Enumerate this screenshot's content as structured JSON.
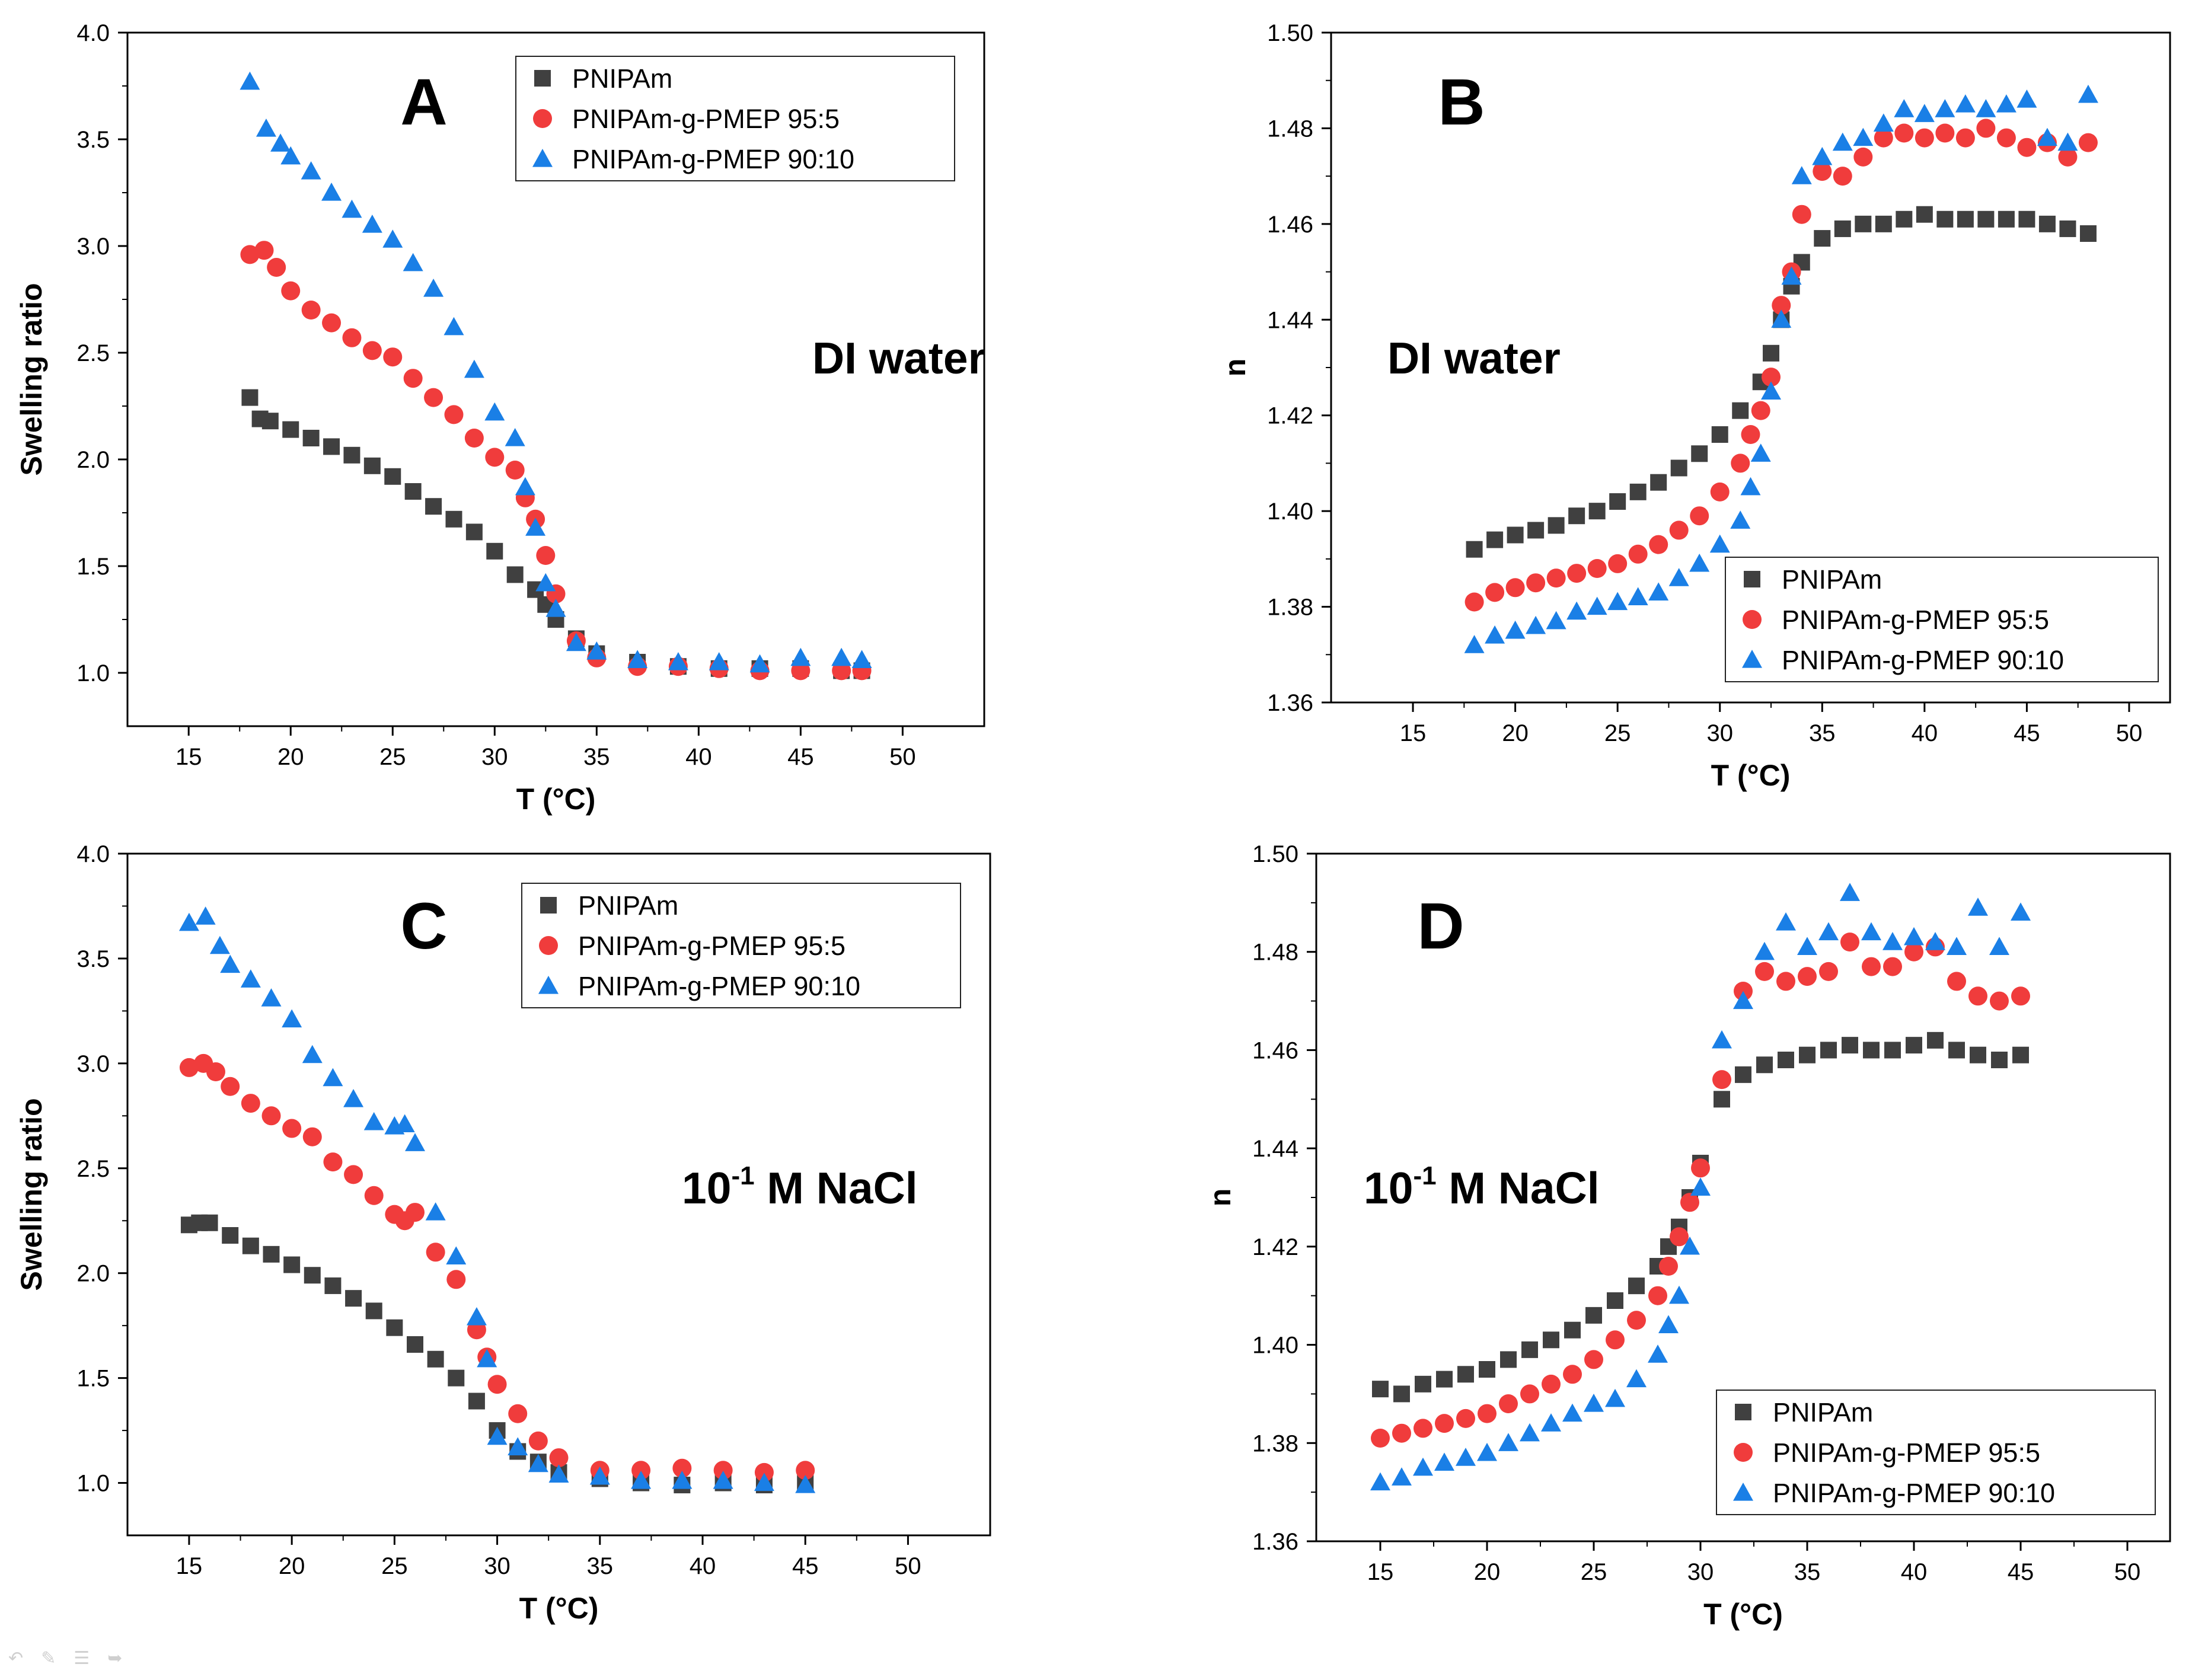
{
  "colors": {
    "PNIPAm": "#404040",
    "PNIPAm-g-PMEP 95:5": "#f03c3c",
    "PNIPAm-g-PMEP 90:10": "#1a7fe6"
  },
  "nav_icons": [
    "back-arrow-icon",
    "pen-icon",
    "menu-icon",
    "forward-arrow-icon"
  ],
  "chart_data": [
    {
      "panel": "A",
      "type": "scatter",
      "annotation": "DI water",
      "xlabel": "T (°C)",
      "ylabel": "Swelling ratio",
      "xlim": [
        12,
        54
      ],
      "ylim": [
        0.75,
        4.0
      ],
      "xticks": [
        15,
        20,
        25,
        30,
        35,
        40,
        45,
        50
      ],
      "yticks": [
        "1.0",
        "1.5",
        "2.0",
        "2.5",
        "3.0",
        "3.5",
        "4.0"
      ],
      "legend_position": "top-right",
      "series": [
        {
          "name": "PNIPAm",
          "marker": "square",
          "x": [
            18,
            18.5,
            19,
            20,
            21,
            22,
            23,
            24,
            25,
            26,
            27,
            28,
            29,
            30,
            31,
            32,
            32.5,
            33,
            34,
            35,
            37,
            39,
            41,
            43,
            45,
            47,
            48
          ],
          "y": [
            2.29,
            2.19,
            2.18,
            2.14,
            2.1,
            2.06,
            2.02,
            1.97,
            1.92,
            1.85,
            1.78,
            1.72,
            1.66,
            1.57,
            1.46,
            1.39,
            1.32,
            1.25,
            1.16,
            1.09,
            1.05,
            1.03,
            1.02,
            1.02,
            1.02,
            1.01,
            1.01
          ]
        },
        {
          "name": "PNIPAm-g-PMEP 95:5",
          "marker": "circle",
          "x": [
            18,
            18.7,
            19.3,
            20,
            21,
            22,
            23,
            24,
            25,
            26,
            27,
            28,
            29,
            30,
            31,
            31.5,
            32,
            32.5,
            33,
            34,
            35,
            37,
            39,
            41,
            43,
            45,
            47,
            48
          ],
          "y": [
            2.96,
            2.98,
            2.9,
            2.79,
            2.7,
            2.64,
            2.57,
            2.51,
            2.48,
            2.38,
            2.29,
            2.21,
            2.1,
            2.01,
            1.95,
            1.82,
            1.72,
            1.55,
            1.37,
            1.15,
            1.07,
            1.03,
            1.03,
            1.02,
            1.01,
            1.01,
            1.01,
            1.01
          ]
        },
        {
          "name": "PNIPAm-g-PMEP 90:10",
          "marker": "triangle",
          "x": [
            18,
            18.8,
            19.5,
            20,
            21,
            22,
            23,
            24,
            25,
            26,
            27,
            28,
            29,
            30,
            31,
            31.5,
            32,
            32.5,
            33,
            34,
            35,
            37,
            39,
            41,
            43,
            45,
            47,
            48
          ],
          "y": [
            3.77,
            3.55,
            3.48,
            3.42,
            3.35,
            3.25,
            3.17,
            3.1,
            3.03,
            2.92,
            2.8,
            2.62,
            2.42,
            2.22,
            2.1,
            1.87,
            1.68,
            1.42,
            1.3,
            1.14,
            1.1,
            1.06,
            1.05,
            1.05,
            1.04,
            1.07,
            1.07,
            1.06
          ]
        }
      ]
    },
    {
      "panel": "B",
      "type": "scatter",
      "annotation": "DI water",
      "xlabel": "T (°C)",
      "ylabel": "n",
      "xlim": [
        11,
        52
      ],
      "ylim": [
        1.36,
        1.5
      ],
      "xticks": [
        15,
        20,
        25,
        30,
        35,
        40,
        45,
        50
      ],
      "yticks": [
        "1.36",
        "1.38",
        "1.40",
        "1.42",
        "1.44",
        "1.46",
        "1.48",
        "1.50"
      ],
      "legend_position": "bottom-right",
      "series": [
        {
          "name": "PNIPAm",
          "marker": "square",
          "x": [
            18,
            19,
            20,
            21,
            22,
            23,
            24,
            25,
            26,
            27,
            28,
            29,
            30,
            31,
            32,
            32.5,
            33,
            33.5,
            34,
            35,
            36,
            37,
            38,
            39,
            40,
            41,
            42,
            43,
            44,
            45,
            46,
            47,
            48
          ],
          "y": [
            1.392,
            1.394,
            1.395,
            1.396,
            1.397,
            1.399,
            1.4,
            1.402,
            1.404,
            1.406,
            1.409,
            1.412,
            1.416,
            1.421,
            1.427,
            1.433,
            1.44,
            1.447,
            1.452,
            1.457,
            1.459,
            1.46,
            1.46,
            1.461,
            1.462,
            1.461,
            1.461,
            1.461,
            1.461,
            1.461,
            1.46,
            1.459,
            1.458
          ]
        },
        {
          "name": "PNIPAm-g-PMEP 95:5",
          "marker": "circle",
          "x": [
            18,
            19,
            20,
            21,
            22,
            23,
            24,
            25,
            26,
            27,
            28,
            29,
            30,
            31,
            31.5,
            32,
            32.5,
            33,
            33.5,
            34,
            35,
            36,
            37,
            38,
            39,
            40,
            41,
            42,
            43,
            44,
            45,
            46,
            47,
            48
          ],
          "y": [
            1.381,
            1.383,
            1.384,
            1.385,
            1.386,
            1.387,
            1.388,
            1.389,
            1.391,
            1.393,
            1.396,
            1.399,
            1.404,
            1.41,
            1.416,
            1.421,
            1.428,
            1.443,
            1.45,
            1.462,
            1.471,
            1.47,
            1.474,
            1.478,
            1.479,
            1.478,
            1.479,
            1.478,
            1.48,
            1.478,
            1.476,
            1.477,
            1.474,
            1.477
          ]
        },
        {
          "name": "PNIPAm-g-PMEP 90:10",
          "marker": "triangle",
          "x": [
            18,
            19,
            20,
            21,
            22,
            23,
            24,
            25,
            26,
            27,
            28,
            29,
            30,
            31,
            31.5,
            32,
            32.5,
            33,
            33.5,
            34,
            35,
            36,
            37,
            38,
            39,
            40,
            41,
            42,
            43,
            44,
            45,
            46,
            47,
            48
          ],
          "y": [
            1.372,
            1.374,
            1.375,
            1.376,
            1.377,
            1.379,
            1.38,
            1.381,
            1.382,
            1.383,
            1.386,
            1.389,
            1.393,
            1.398,
            1.405,
            1.412,
            1.425,
            1.44,
            1.449,
            1.47,
            1.474,
            1.477,
            1.478,
            1.481,
            1.484,
            1.483,
            1.484,
            1.485,
            1.484,
            1.485,
            1.486,
            1.478,
            1.477,
            1.487
          ]
        }
      ]
    },
    {
      "panel": "C",
      "type": "scatter",
      "annotation_base": "10",
      "annotation_sup": "-1",
      "annotation_rest": " M NaCl",
      "xlabel": "T (°C)",
      "ylabel": "Swelling ratio",
      "xlim": [
        12,
        54
      ],
      "ylim": [
        0.75,
        4.0
      ],
      "xticks": [
        15,
        20,
        25,
        30,
        35,
        40,
        45,
        50
      ],
      "yticks": [
        "1.0",
        "1.5",
        "2.0",
        "2.5",
        "3.0",
        "3.5",
        "4.0"
      ],
      "legend_position": "top-right",
      "series": [
        {
          "name": "PNIPAm",
          "marker": "square",
          "x": [
            15,
            15.5,
            16,
            17,
            18,
            19,
            20,
            21,
            22,
            23,
            24,
            25,
            26,
            27,
            28,
            29,
            30,
            31,
            32,
            33,
            35,
            37,
            39,
            41,
            43,
            45
          ],
          "y": [
            2.23,
            2.24,
            2.24,
            2.18,
            2.13,
            2.09,
            2.04,
            1.99,
            1.94,
            1.88,
            1.82,
            1.74,
            1.66,
            1.59,
            1.5,
            1.39,
            1.25,
            1.15,
            1.1,
            1.05,
            1.02,
            1.0,
            0.99,
            1.0,
            0.99,
            1.0
          ]
        },
        {
          "name": "PNIPAm-g-PMEP 95:5",
          "marker": "circle",
          "x": [
            15,
            15.7,
            16.3,
            17,
            18,
            19,
            20,
            21,
            22,
            23,
            24,
            25,
            25.5,
            26,
            27,
            28,
            29,
            29.5,
            30,
            31,
            32,
            33,
            35,
            37,
            39,
            41,
            43,
            45
          ],
          "y": [
            2.98,
            3.0,
            2.96,
            2.89,
            2.81,
            2.75,
            2.69,
            2.65,
            2.53,
            2.47,
            2.37,
            2.28,
            2.25,
            2.29,
            2.1,
            1.97,
            1.73,
            1.6,
            1.47,
            1.33,
            1.2,
            1.12,
            1.06,
            1.06,
            1.07,
            1.06,
            1.05,
            1.06
          ]
        },
        {
          "name": "PNIPAm-g-PMEP 90:10",
          "marker": "triangle",
          "x": [
            15,
            15.8,
            16.5,
            17,
            18,
            19,
            20,
            21,
            22,
            23,
            24,
            25,
            25.5,
            26,
            27,
            28,
            29,
            29.5,
            30,
            31,
            32,
            33,
            35,
            37,
            39,
            41,
            43,
            45
          ],
          "y": [
            3.67,
            3.7,
            3.56,
            3.47,
            3.4,
            3.31,
            3.21,
            3.04,
            2.93,
            2.83,
            2.72,
            2.7,
            2.71,
            2.62,
            2.29,
            2.08,
            1.79,
            1.59,
            1.22,
            1.17,
            1.09,
            1.04,
            1.03,
            1.01,
            1.01,
            1.01,
            1.0,
            0.99
          ]
        }
      ]
    },
    {
      "panel": "D",
      "type": "scatter",
      "annotation_base": "10",
      "annotation_sup": "-1",
      "annotation_rest": " M NaCl",
      "xlabel": "T (°C)",
      "ylabel": "n",
      "xlim": [
        12,
        52
      ],
      "ylim": [
        1.36,
        1.5
      ],
      "xticks": [
        15,
        20,
        25,
        30,
        35,
        40,
        45,
        50
      ],
      "yticks": [
        "1.36",
        "1.38",
        "1.40",
        "1.42",
        "1.44",
        "1.46",
        "1.48",
        "1.50"
      ],
      "legend_position": "bottom-right",
      "series": [
        {
          "name": "PNIPAm",
          "marker": "square",
          "x": [
            15,
            16,
            17,
            18,
            19,
            20,
            21,
            22,
            23,
            24,
            25,
            26,
            27,
            28,
            28.5,
            29,
            29.5,
            30,
            31,
            32,
            33,
            34,
            35,
            36,
            37,
            38,
            39,
            40,
            41,
            42,
            43,
            44,
            45
          ],
          "y": [
            1.391,
            1.39,
            1.392,
            1.393,
            1.394,
            1.395,
            1.397,
            1.399,
            1.401,
            1.403,
            1.406,
            1.409,
            1.412,
            1.416,
            1.42,
            1.424,
            1.43,
            1.437,
            1.45,
            1.455,
            1.457,
            1.458,
            1.459,
            1.46,
            1.461,
            1.46,
            1.46,
            1.461,
            1.462,
            1.46,
            1.459,
            1.458,
            1.459
          ]
        },
        {
          "name": "PNIPAm-g-PMEP 95:5",
          "marker": "circle",
          "x": [
            15,
            16,
            17,
            18,
            19,
            20,
            21,
            22,
            23,
            24,
            25,
            26,
            27,
            28,
            28.5,
            29,
            29.5,
            30,
            31,
            32,
            33,
            34,
            35,
            36,
            37,
            38,
            39,
            40,
            41,
            42,
            43,
            44,
            45
          ],
          "y": [
            1.381,
            1.382,
            1.383,
            1.384,
            1.385,
            1.386,
            1.388,
            1.39,
            1.392,
            1.394,
            1.397,
            1.401,
            1.405,
            1.41,
            1.416,
            1.422,
            1.429,
            1.436,
            1.454,
            1.472,
            1.476,
            1.474,
            1.475,
            1.476,
            1.482,
            1.477,
            1.477,
            1.48,
            1.481,
            1.474,
            1.471,
            1.47,
            1.471
          ]
        },
        {
          "name": "PNIPAm-g-PMEP 90:10",
          "marker": "triangle",
          "x": [
            15,
            16,
            17,
            18,
            19,
            20,
            21,
            22,
            23,
            24,
            25,
            26,
            27,
            28,
            28.5,
            29,
            29.5,
            30,
            31,
            32,
            33,
            34,
            35,
            36,
            37,
            38,
            39,
            40,
            41,
            42,
            43,
            44,
            45
          ],
          "y": [
            1.372,
            1.373,
            1.375,
            1.376,
            1.377,
            1.378,
            1.38,
            1.382,
            1.384,
            1.386,
            1.388,
            1.389,
            1.393,
            1.398,
            1.404,
            1.41,
            1.42,
            1.432,
            1.462,
            1.47,
            1.48,
            1.486,
            1.481,
            1.484,
            1.492,
            1.484,
            1.482,
            1.483,
            1.482,
            1.481,
            1.489,
            1.481,
            1.488
          ]
        }
      ]
    }
  ]
}
